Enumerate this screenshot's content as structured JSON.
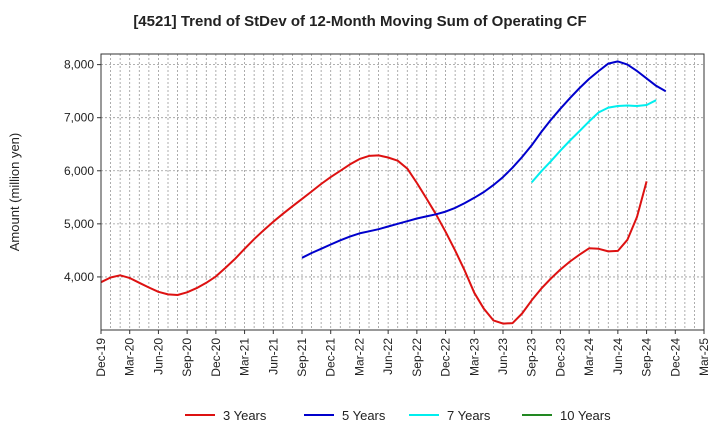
{
  "chart_data": {
    "type": "line",
    "title": "[4521]  Trend of StDev of 12-Month Moving Sum of Operating CF",
    "xlabel": "",
    "ylabel": "Amount (million yen)",
    "x_ticks": [
      "Dec-19",
      "Mar-20",
      "Jun-20",
      "Sep-20",
      "Dec-20",
      "Mar-21",
      "Jun-21",
      "Sep-21",
      "Dec-21",
      "Mar-22",
      "Jun-22",
      "Sep-22",
      "Dec-22",
      "Mar-23",
      "Jun-23",
      "Sep-23",
      "Dec-23",
      "Mar-24",
      "Jun-24",
      "Sep-24",
      "Dec-24",
      "Mar-25"
    ],
    "y_ticks": [
      4000,
      5000,
      6000,
      7000,
      8000
    ],
    "y_tick_labels": [
      "4,000",
      "5,000",
      "6,000",
      "7,000",
      "8,000"
    ],
    "ylim": [
      3000,
      8200
    ],
    "grid": true,
    "legend_position": "bottom",
    "series": [
      {
        "name": "3 Years",
        "color": "#dd1111",
        "start_index": 0,
        "values": [
          3900,
          3990,
          4030,
          3980,
          3890,
          3800,
          3720,
          3670,
          3660,
          3710,
          3790,
          3890,
          4010,
          4170,
          4340,
          4530,
          4710,
          4880,
          5040,
          5190,
          5330,
          5470,
          5610,
          5750,
          5880,
          6000,
          6120,
          6220,
          6280,
          6290,
          6250,
          6190,
          6040,
          5770,
          5480,
          5180,
          4850,
          4500,
          4120,
          3700,
          3400,
          3180,
          3120,
          3130,
          3310,
          3560,
          3780,
          3970,
          4140,
          4290,
          4420,
          4540,
          4530,
          4480,
          4490,
          4700,
          5130,
          5800
        ]
      },
      {
        "name": "5 Years",
        "color": "#0000cc",
        "start_index": 21,
        "values": [
          4360,
          4450,
          4530,
          4610,
          4690,
          4760,
          4820,
          4860,
          4900,
          4950,
          5000,
          5050,
          5100,
          5140,
          5180,
          5230,
          5300,
          5390,
          5490,
          5600,
          5730,
          5880,
          6060,
          6260,
          6480,
          6730,
          6960,
          7170,
          7370,
          7560,
          7730,
          7880,
          8020,
          8060,
          8000,
          7880,
          7740,
          7600,
          7500
        ]
      },
      {
        "name": "7 Years",
        "color": "#00eeee",
        "start_index": 45,
        "values": [
          5780,
          5990,
          6180,
          6380,
          6570,
          6750,
          6930,
          7100,
          7190,
          7220,
          7230,
          7220,
          7240,
          7330
        ]
      },
      {
        "name": "10 Years",
        "color": "#228822",
        "start_index": 0,
        "values": []
      }
    ]
  }
}
